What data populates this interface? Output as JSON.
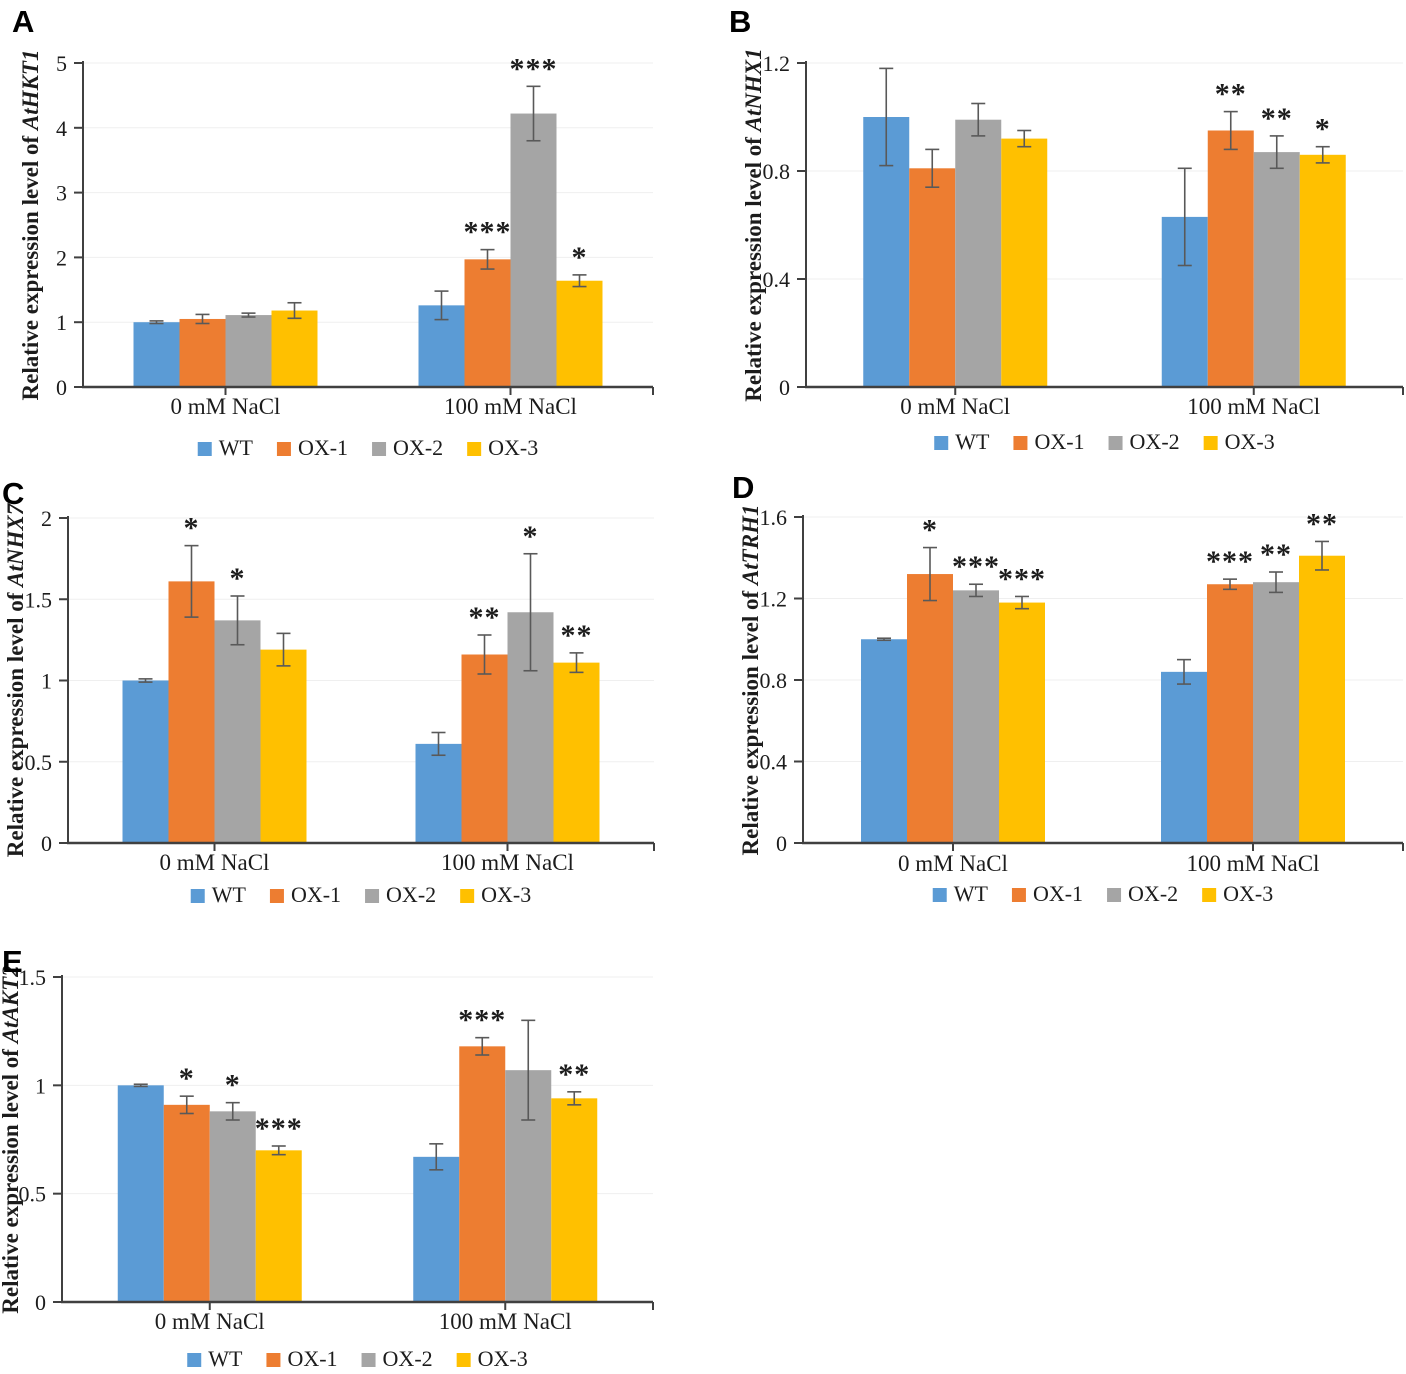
{
  "figure": {
    "description": "Five-panel bar figure of relative gene expression under salt treatment",
    "categories": [
      "0 mM NaCl",
      "100 mM NaCl"
    ],
    "legend": [
      "WT",
      "OX-1",
      "OX-2",
      "OX-3"
    ],
    "colors": {
      "WT": "#5B9BD5",
      "OX-1": "#ED7D31",
      "OX-2": "#A5A5A5",
      "OX-3": "#FFC000",
      "axis": "#404040",
      "error_bar": "#595959",
      "gridline": "#EFEFEF",
      "text": "#1c1c1c"
    }
  },
  "chart_data": [
    {
      "type": "bar",
      "panel": "A",
      "ylabel": "Relative expression level of AtHKT1",
      "ylabel_prefix": "Relative expression level of ",
      "ylabel_gene": "AtHKT1",
      "categories": [
        "0 mM NaCl",
        "100 mM NaCl"
      ],
      "ylim": [
        0,
        5
      ],
      "yticks": [
        0,
        1,
        2,
        3,
        4,
        5
      ],
      "ytick_labels": [
        "0",
        "1",
        "2",
        "3",
        "4",
        "5"
      ],
      "grid": true,
      "legend_position": "bottom",
      "series": [
        {
          "name": "WT",
          "color": "#5B9BD5",
          "values": [
            1.0,
            1.26
          ],
          "errors": [
            0.02,
            0.22
          ],
          "sig": [
            "",
            ""
          ]
        },
        {
          "name": "OX-1",
          "color": "#ED7D31",
          "values": [
            1.05,
            1.97
          ],
          "errors": [
            0.07,
            0.15
          ],
          "sig": [
            "",
            "***"
          ]
        },
        {
          "name": "OX-2",
          "color": "#A5A5A5",
          "values": [
            1.11,
            4.22
          ],
          "errors": [
            0.03,
            0.42
          ],
          "sig": [
            "",
            "***"
          ]
        },
        {
          "name": "OX-3",
          "color": "#FFC000",
          "values": [
            1.18,
            1.64
          ],
          "errors": [
            0.12,
            0.09
          ],
          "sig": [
            "",
            "*"
          ]
        }
      ]
    },
    {
      "type": "bar",
      "panel": "B",
      "ylabel": "Relative expression level of AtNHX1",
      "ylabel_prefix": "Relative expression level of ",
      "ylabel_gene": "AtNHX1",
      "categories": [
        "0 mM NaCl",
        "100 mM NaCl"
      ],
      "ylim": [
        0,
        1.2
      ],
      "yticks": [
        0,
        0.4,
        0.8,
        1.2
      ],
      "ytick_labels": [
        "0",
        "0.4",
        "0.8",
        "1.2"
      ],
      "grid": true,
      "legend_position": "bottom",
      "series": [
        {
          "name": "WT",
          "color": "#5B9BD5",
          "values": [
            1.0,
            0.63
          ],
          "errors": [
            0.18,
            0.18
          ],
          "sig": [
            "",
            ""
          ]
        },
        {
          "name": "OX-1",
          "color": "#ED7D31",
          "values": [
            0.81,
            0.95
          ],
          "errors": [
            0.07,
            0.07
          ],
          "sig": [
            "",
            "**"
          ]
        },
        {
          "name": "OX-2",
          "color": "#A5A5A5",
          "values": [
            0.99,
            0.87
          ],
          "errors": [
            0.06,
            0.06
          ],
          "sig": [
            "",
            "**"
          ]
        },
        {
          "name": "OX-3",
          "color": "#FFC000",
          "values": [
            0.92,
            0.86
          ],
          "errors": [
            0.03,
            0.03
          ],
          "sig": [
            "",
            "*"
          ]
        }
      ]
    },
    {
      "type": "bar",
      "panel": "C",
      "ylabel": "Relative expression level of AtNHX7",
      "ylabel_prefix": "Relative expression level of ",
      "ylabel_gene": "AtNHX7",
      "categories": [
        "0 mM NaCl",
        "100 mM NaCl"
      ],
      "ylim": [
        0,
        2
      ],
      "yticks": [
        0,
        0.5,
        1,
        1.5,
        2
      ],
      "ytick_labels": [
        "0",
        "0.5",
        "1",
        "1.5",
        "2"
      ],
      "grid": true,
      "legend_position": "bottom",
      "series": [
        {
          "name": "WT",
          "color": "#5B9BD5",
          "values": [
            1.0,
            0.61
          ],
          "errors": [
            0.01,
            0.07
          ],
          "sig": [
            "",
            ""
          ]
        },
        {
          "name": "OX-1",
          "color": "#ED7D31",
          "values": [
            1.61,
            1.16
          ],
          "errors": [
            0.22,
            0.12
          ],
          "sig": [
            "*",
            "**"
          ]
        },
        {
          "name": "OX-2",
          "color": "#A5A5A5",
          "values": [
            1.37,
            1.42
          ],
          "errors": [
            0.15,
            0.36
          ],
          "sig": [
            "*",
            "*"
          ]
        },
        {
          "name": "OX-3",
          "color": "#FFC000",
          "values": [
            1.19,
            1.11
          ],
          "errors": [
            0.1,
            0.06
          ],
          "sig": [
            "",
            "**"
          ]
        }
      ]
    },
    {
      "type": "bar",
      "panel": "D",
      "ylabel": "Relative expression level of AtTRH1",
      "ylabel_prefix": "Relative expression level of ",
      "ylabel_gene": "AtTRH1",
      "categories": [
        "0 mM NaCl",
        "100 mM NaCl"
      ],
      "ylim": [
        0,
        1.6
      ],
      "yticks": [
        0,
        0.4,
        0.8,
        1.2,
        1.6
      ],
      "ytick_labels": [
        "0",
        "0.4",
        "0.8",
        "1.2",
        "1.6"
      ],
      "grid": true,
      "legend_position": "bottom",
      "series": [
        {
          "name": "WT",
          "color": "#5B9BD5",
          "values": [
            1.0,
            0.84
          ],
          "errors": [
            0.005,
            0.06
          ],
          "sig": [
            "",
            ""
          ]
        },
        {
          "name": "OX-1",
          "color": "#ED7D31",
          "values": [
            1.32,
            1.27
          ],
          "errors": [
            0.13,
            0.025
          ],
          "sig": [
            "*",
            "***"
          ]
        },
        {
          "name": "OX-2",
          "color": "#A5A5A5",
          "values": [
            1.24,
            1.28
          ],
          "errors": [
            0.03,
            0.05
          ],
          "sig": [
            "***",
            "**"
          ]
        },
        {
          "name": "OX-3",
          "color": "#FFC000",
          "values": [
            1.18,
            1.41
          ],
          "errors": [
            0.03,
            0.07
          ],
          "sig": [
            "***",
            "**"
          ]
        }
      ]
    },
    {
      "type": "bar",
      "panel": "E",
      "ylabel": "Relative expression level of AtAKT2",
      "ylabel_prefix": "Relative expression level of ",
      "ylabel_gene": "AtAKT2",
      "categories": [
        "0 mM NaCl",
        "100 mM NaCl"
      ],
      "ylim": [
        0,
        1.5
      ],
      "yticks": [
        0,
        0.5,
        1,
        1.5
      ],
      "ytick_labels": [
        "0",
        "0.5",
        "1",
        "1.5"
      ],
      "grid": true,
      "legend_position": "bottom",
      "series": [
        {
          "name": "WT",
          "color": "#5B9BD5",
          "values": [
            1.0,
            0.67
          ],
          "errors": [
            0.005,
            0.06
          ],
          "sig": [
            "",
            ""
          ]
        },
        {
          "name": "OX-1",
          "color": "#ED7D31",
          "values": [
            0.91,
            1.18
          ],
          "errors": [
            0.04,
            0.04
          ],
          "sig": [
            "*",
            "***"
          ]
        },
        {
          "name": "OX-2",
          "color": "#A5A5A5",
          "values": [
            0.88,
            1.07
          ],
          "errors": [
            0.04,
            0.23
          ],
          "sig": [
            "*",
            ""
          ]
        },
        {
          "name": "OX-3",
          "color": "#FFC000",
          "values": [
            0.7,
            0.94
          ],
          "errors": [
            0.02,
            0.03
          ],
          "sig": [
            "***",
            "**"
          ]
        }
      ]
    }
  ]
}
